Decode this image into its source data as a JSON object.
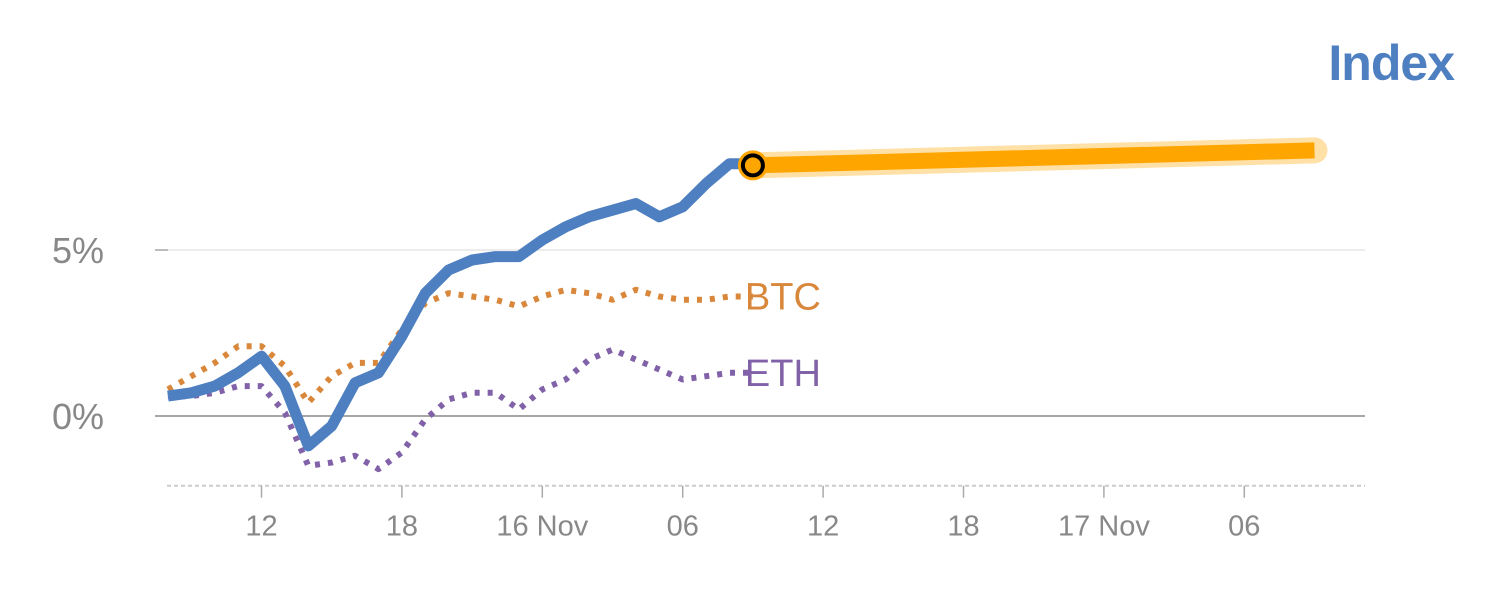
{
  "chart_data": {
    "type": "line",
    "title": "Index",
    "xlabel": "",
    "ylabel": "",
    "grid": true,
    "ylim": [
      -2.1,
      10
    ],
    "y_ticks": [
      {
        "value": 0,
        "label": "0%"
      },
      {
        "value": 5,
        "label": "5%"
      }
    ],
    "x_ticks": [
      {
        "hour": 12,
        "label": "12"
      },
      {
        "hour": 18,
        "label": "18"
      },
      {
        "hour": 24,
        "label": "16 Nov"
      },
      {
        "hour": 30,
        "label": "06"
      },
      {
        "hour": 36,
        "label": "12"
      },
      {
        "hour": 42,
        "label": "18"
      },
      {
        "hour": 48,
        "label": "17 Nov"
      },
      {
        "hour": 54,
        "label": "06"
      }
    ],
    "series": [
      {
        "name": "Index",
        "style": "solid",
        "color": "#4e7fc0",
        "x": [
          8,
          9,
          10,
          11,
          12,
          13,
          14,
          15,
          16,
          17,
          18,
          19,
          20,
          21,
          22,
          23,
          24,
          25,
          26,
          27,
          28,
          29,
          30,
          31,
          32,
          33
        ],
        "y": [
          0.6,
          0.7,
          0.9,
          1.3,
          1.8,
          0.9,
          -0.9,
          -0.3,
          1.0,
          1.3,
          2.4,
          3.7,
          4.4,
          4.7,
          4.8,
          4.8,
          5.3,
          5.7,
          6.0,
          6.2,
          6.4,
          6.0,
          6.3,
          7.0,
          7.6,
          7.6
        ]
      },
      {
        "name": "BTC",
        "style": "dotted",
        "color": "#d9873b",
        "x": [
          8,
          9,
          10,
          11,
          12,
          13,
          14,
          15,
          16,
          17,
          18,
          19,
          20,
          21,
          22,
          23,
          24,
          25,
          26,
          27,
          28,
          29,
          30,
          31,
          32,
          33
        ],
        "y": [
          0.8,
          1.2,
          1.6,
          2.1,
          2.1,
          1.5,
          0.4,
          1.2,
          1.6,
          1.6,
          2.6,
          3.4,
          3.7,
          3.6,
          3.5,
          3.3,
          3.6,
          3.8,
          3.7,
          3.5,
          3.8,
          3.6,
          3.5,
          3.5,
          3.6,
          3.6
        ]
      },
      {
        "name": "ETH",
        "style": "dotted",
        "color": "#8162a8",
        "x": [
          8,
          9,
          10,
          11,
          12,
          13,
          14,
          15,
          16,
          17,
          18,
          19,
          20,
          21,
          22,
          23,
          24,
          25,
          26,
          27,
          28,
          29,
          30,
          31,
          32,
          33
        ],
        "y": [
          0.6,
          0.6,
          0.7,
          0.9,
          0.9,
          0.1,
          -1.5,
          -1.4,
          -1.2,
          -1.6,
          -1.1,
          -0.1,
          0.5,
          0.7,
          0.7,
          0.2,
          0.8,
          1.1,
          1.7,
          2.0,
          1.7,
          1.4,
          1.1,
          1.2,
          1.3,
          1.3
        ]
      }
    ],
    "forecast": {
      "color": "#ffa500",
      "x": [
        33,
        57
      ],
      "y": [
        7.55,
        8.0
      ]
    },
    "marker": {
      "x": 33,
      "y": 7.55
    }
  }
}
